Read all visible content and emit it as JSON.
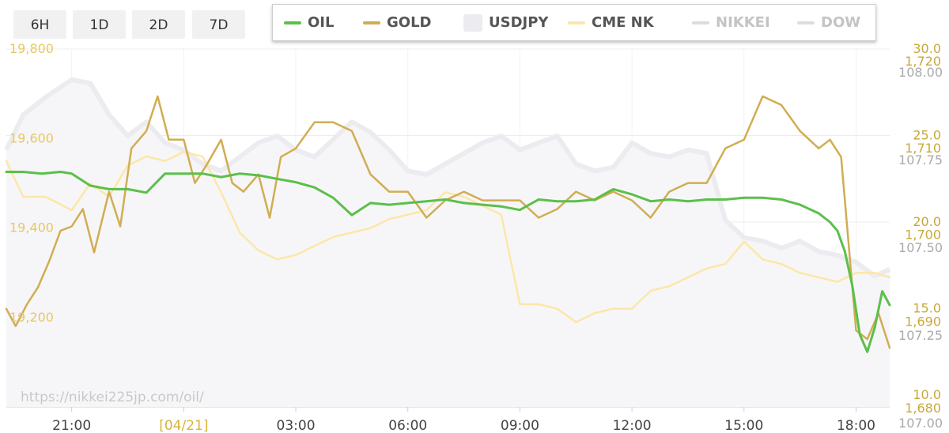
{
  "range_buttons": [
    "6H",
    "1D",
    "2D",
    "7D"
  ],
  "legend": [
    {
      "label": "OIL",
      "color": "#5cbf4a",
      "swatch": "line",
      "text_color": "#555555"
    },
    {
      "label": "GOLD",
      "color": "#d1ad52",
      "swatch": "line",
      "text_color": "#555555"
    },
    {
      "label": "USDJPY",
      "color": "#ececf0",
      "swatch": "box",
      "text_color": "#555555"
    },
    {
      "label": "CME NK",
      "color": "#fce7a8",
      "swatch": "line",
      "text_color": "#555555"
    },
    {
      "label": "NIKKEI",
      "color": "#dddddd",
      "swatch": "line",
      "text_color": "#c4c4c4"
    },
    {
      "label": "DOW",
      "color": "#dddddd",
      "swatch": "line",
      "text_color": "#c4c4c4"
    }
  ],
  "watermark": "https://nikkei225jp.com/oil/",
  "chart_data": {
    "type": "line",
    "x_tick_labels": [
      "21:00",
      "[04/21]",
      "03:00",
      "06:00",
      "09:00",
      "12:00",
      "15:00",
      "18:00"
    ],
    "x_tick_hours": [
      0,
      3,
      6,
      9,
      12,
      15,
      18,
      21
    ],
    "x_range_hours": [
      -1.75,
      21.9
    ],
    "grid": true,
    "axes": {
      "nikkei": {
        "side": "left",
        "ticks": [
          "19,800",
          "19,600",
          "19,400",
          "19,200"
        ],
        "range": [
          19200,
          19800
        ],
        "color": "#e8c860"
      },
      "oil": {
        "side": "right",
        "ticks": [
          "30.0",
          "25.0",
          "20.0",
          "15.0",
          "10.0"
        ],
        "range": [
          10,
          30
        ],
        "color": "#c8a83a"
      },
      "gold": {
        "side": "right",
        "ticks": [
          "1,720",
          "1,710",
          "1,700",
          "1,690",
          "1,680"
        ],
        "range": [
          1680,
          1720
        ],
        "color": "#c8a83a"
      },
      "usdjpy": {
        "side": "right",
        "ticks": [
          "108.00",
          "107.75",
          "107.50",
          "107.25",
          "107.00"
        ],
        "range": [
          107,
          108
        ],
        "color": "#aaaaaa"
      }
    },
    "series": [
      {
        "name": "USDJPY",
        "axis": "usdjpy",
        "color": "#ececf0",
        "fill": true,
        "x": [
          -1.75,
          -1.3,
          -0.7,
          0,
          0.5,
          1,
          1.5,
          2,
          2.5,
          3,
          3.5,
          4,
          4.5,
          5,
          5.5,
          6,
          6.5,
          7,
          7.5,
          8,
          8.5,
          9,
          9.5,
          10,
          10.5,
          11,
          11.5,
          12,
          12.5,
          13,
          13.5,
          14,
          14.5,
          15,
          15.5,
          16,
          16.5,
          17,
          17.5,
          18,
          18.5,
          19,
          19.5,
          20,
          20.5,
          21,
          21.5,
          21.9
        ],
        "y": [
          107.78,
          107.88,
          107.93,
          107.98,
          107.97,
          107.88,
          107.82,
          107.86,
          107.8,
          107.78,
          107.74,
          107.72,
          107.76,
          107.8,
          107.82,
          107.78,
          107.76,
          107.81,
          107.86,
          107.83,
          107.78,
          107.72,
          107.71,
          107.74,
          107.77,
          107.8,
          107.82,
          107.78,
          107.8,
          107.82,
          107.74,
          107.72,
          107.73,
          107.8,
          107.77,
          107.76,
          107.78,
          107.77,
          107.58,
          107.53,
          107.52,
          107.5,
          107.52,
          107.49,
          107.48,
          107.46,
          107.42,
          107.44
        ]
      },
      {
        "name": "CME NK",
        "axis": "nikkei",
        "color": "#fce7a8",
        "x": [
          -1.75,
          -1.3,
          -0.7,
          0,
          0.5,
          1,
          1.5,
          2,
          2.5,
          3,
          3.5,
          4,
          4.5,
          5,
          5.5,
          6,
          6.5,
          7,
          7.5,
          8,
          8.5,
          9,
          9.5,
          10,
          10.5,
          11,
          11.5,
          12,
          12.5,
          13,
          13.5,
          14,
          14.5,
          15,
          15.5,
          16,
          16.5,
          17,
          17.5,
          18,
          18.5,
          19,
          19.5,
          20,
          20.5,
          21,
          21.5,
          21.9
        ],
        "y": [
          19550,
          19470,
          19470,
          19440,
          19500,
          19470,
          19540,
          19560,
          19550,
          19570,
          19560,
          19480,
          19390,
          19350,
          19330,
          19340,
          19360,
          19380,
          19390,
          19400,
          19420,
          19430,
          19440,
          19480,
          19470,
          19450,
          19430,
          19230,
          19230,
          19220,
          19190,
          19210,
          19220,
          19220,
          19260,
          19270,
          19290,
          19310,
          19320,
          19370,
          19330,
          19320,
          19300,
          19290,
          19280,
          19300,
          19300,
          19290
        ]
      },
      {
        "name": "GOLD",
        "axis": "gold",
        "color": "#d1ad52",
        "x": [
          -1.75,
          -1.5,
          -1.2,
          -0.9,
          -0.6,
          -0.3,
          0,
          0.3,
          0.6,
          1,
          1.3,
          1.6,
          2,
          2.3,
          2.6,
          3,
          3.3,
          3.6,
          4,
          4.3,
          4.6,
          5,
          5.3,
          5.6,
          6,
          6.5,
          7,
          7.5,
          8,
          8.5,
          9,
          9.5,
          10,
          10.5,
          11,
          11.5,
          12,
          12.5,
          13,
          13.5,
          14,
          14.5,
          15,
          15.5,
          16,
          16.5,
          17,
          17.5,
          18,
          18.5,
          19,
          19.5,
          20,
          20.3,
          20.6,
          21,
          21.3,
          21.6,
          21.9
        ],
        "y": [
          1691.5,
          1689.5,
          1692,
          1694,
          1697,
          1700.5,
          1701,
          1703,
          1698,
          1705,
          1701,
          1710,
          1712,
          1716,
          1711,
          1711,
          1706,
          1708,
          1711,
          1706,
          1705,
          1707,
          1702,
          1709,
          1710,
          1713,
          1713,
          1712,
          1707,
          1705,
          1705,
          1702,
          1704,
          1705,
          1704,
          1704,
          1704,
          1702,
          1703,
          1705,
          1704,
          1705,
          1704,
          1702,
          1705,
          1706,
          1706,
          1710,
          1711,
          1716,
          1715,
          1712,
          1710,
          1711,
          1709,
          1689,
          1688,
          1691,
          1687
        ]
      },
      {
        "name": "OIL",
        "axis": "oil",
        "color": "#5cbf4a",
        "width": 3,
        "x": [
          -1.75,
          -1.3,
          -0.8,
          -0.3,
          0,
          0.5,
          1,
          1.5,
          2,
          2.5,
          3,
          3.5,
          4,
          4.5,
          5,
          5.5,
          6,
          6.5,
          7,
          7.5,
          8,
          8.5,
          9,
          9.5,
          10,
          10.5,
          11,
          11.5,
          12,
          12.5,
          13,
          13.5,
          14,
          14.5,
          15,
          15.5,
          16,
          16.5,
          17,
          17.5,
          18,
          18.5,
          19,
          19.5,
          20,
          20.3,
          20.5,
          20.7,
          20.9,
          21.1,
          21.3,
          21.5,
          21.7,
          21.9
        ],
        "y": [
          22.9,
          22.9,
          22.8,
          22.9,
          22.8,
          22.1,
          21.9,
          21.9,
          21.7,
          22.8,
          22.8,
          22.8,
          22.6,
          22.8,
          22.7,
          22.5,
          22.3,
          22.0,
          21.4,
          20.4,
          21.1,
          21.0,
          21.1,
          21.2,
          21.3,
          21.1,
          21.0,
          20.9,
          20.7,
          21.3,
          21.2,
          21.2,
          21.3,
          21.9,
          21.6,
          21.2,
          21.3,
          21.2,
          21.3,
          21.3,
          21.4,
          21.4,
          21.3,
          21.0,
          20.5,
          20.0,
          19.5,
          18.3,
          16.3,
          13.5,
          12.5,
          13.9,
          16.0,
          15.2
        ]
      }
    ]
  }
}
